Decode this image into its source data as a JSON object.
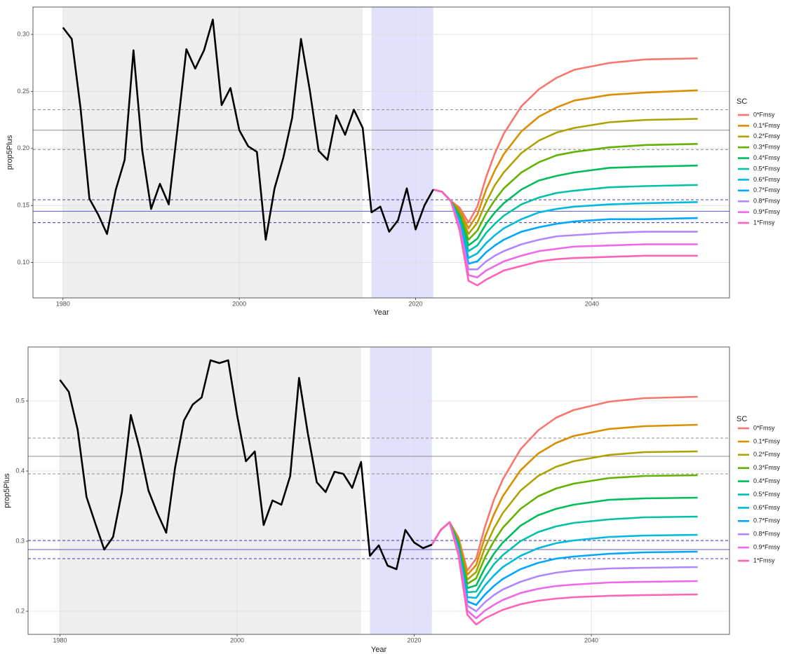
{
  "chart_data": [
    {
      "type": "line",
      "x_label": "Year",
      "y_label": "prop5Plus",
      "legend_title": "SC",
      "grid": true,
      "xlim": [
        1976.6,
        2055.6
      ],
      "xticks": [
        1980,
        2000,
        2020,
        2040
      ],
      "ylim": [
        0.069,
        0.324
      ],
      "yticks": [
        {
          "value": 0.1,
          "label": "0.10"
        },
        0.15,
        {
          "value": 0.2,
          "label": "0.20"
        },
        0.25,
        {
          "value": 0.3,
          "label": "0.30"
        }
      ],
      "shading": [
        {
          "from": 1980,
          "to": 2014,
          "color": "#eeeeee"
        },
        {
          "from": 2015,
          "to": 2022,
          "color": "#e1e1fb"
        }
      ],
      "reference_lines": [
        {
          "value": 0.234,
          "color": "#8c8c8c",
          "dashed": true
        },
        {
          "value": 0.216,
          "color": "#8c8c8c",
          "dashed": false
        },
        {
          "value": 0.199,
          "color": "#8c8c8c",
          "dashed": true
        },
        {
          "value": 0.155,
          "color": "#3b3bb0",
          "dashed": true
        },
        {
          "value": 0.145,
          "color": "#5b5bc0",
          "dashed": false
        },
        {
          "value": 0.135,
          "color": "#3b3bb0",
          "dashed": true
        }
      ],
      "history": {
        "color": "#000000",
        "x": [
          1980,
          1981,
          1982,
          1983,
          1984,
          1985,
          1986,
          1987,
          1988,
          1989,
          1990,
          1991,
          1992,
          1993,
          1994,
          1995,
          1996,
          1997,
          1998,
          1999,
          2000,
          2001,
          2002,
          2003,
          2004,
          2005,
          2006,
          2007,
          2008,
          2009,
          2010,
          2011,
          2012,
          2013,
          2014,
          2015,
          2016,
          2017,
          2018,
          2019,
          2020,
          2021,
          2022
        ],
        "values": [
          0.306,
          0.296,
          0.235,
          0.156,
          0.142,
          0.125,
          0.164,
          0.19,
          0.286,
          0.198,
          0.147,
          0.169,
          0.151,
          0.218,
          0.287,
          0.27,
          0.286,
          0.313,
          0.238,
          0.253,
          0.216,
          0.202,
          0.197,
          0.12,
          0.165,
          0.192,
          0.227,
          0.296,
          0.251,
          0.198,
          0.19,
          0.229,
          0.212,
          0.234,
          0.218,
          0.144,
          0.149,
          0.127,
          0.137,
          0.165,
          0.129,
          0.15,
          0.164
        ]
      },
      "x": [
        2022,
        2023,
        2024,
        2025,
        2026,
        2027,
        2028,
        2029,
        2030,
        2032,
        2034,
        2036,
        2038,
        2042,
        2046,
        2052
      ],
      "series": [
        {
          "name": "0*Fmsy",
          "color": "#F8766D",
          "values": [
            0.164,
            0.162,
            0.154,
            0.148,
            0.135,
            0.149,
            0.175,
            0.196,
            0.213,
            0.237,
            0.252,
            0.262,
            0.269,
            0.275,
            0.278,
            0.279
          ]
        },
        {
          "name": "0.1*Fmsy",
          "color": "#DB8E00",
          "values": [
            0.164,
            0.162,
            0.154,
            0.146,
            0.13,
            0.142,
            0.164,
            0.181,
            0.195,
            0.215,
            0.228,
            0.236,
            0.242,
            0.247,
            0.249,
            0.251
          ]
        },
        {
          "name": "0.2*Fmsy",
          "color": "#AEA200",
          "values": [
            0.164,
            0.162,
            0.154,
            0.144,
            0.125,
            0.135,
            0.153,
            0.168,
            0.179,
            0.196,
            0.207,
            0.214,
            0.218,
            0.223,
            0.225,
            0.226
          ]
        },
        {
          "name": "0.3*Fmsy",
          "color": "#64B200",
          "values": [
            0.164,
            0.162,
            0.154,
            0.142,
            0.12,
            0.128,
            0.143,
            0.155,
            0.165,
            0.179,
            0.188,
            0.194,
            0.197,
            0.201,
            0.203,
            0.204
          ]
        },
        {
          "name": "0.4*Fmsy",
          "color": "#00BD5C",
          "values": [
            0.164,
            0.162,
            0.154,
            0.14,
            0.115,
            0.121,
            0.134,
            0.144,
            0.152,
            0.164,
            0.172,
            0.176,
            0.179,
            0.183,
            0.184,
            0.185
          ]
        },
        {
          "name": "0.5*Fmsy",
          "color": "#00C1A7",
          "values": [
            0.164,
            0.162,
            0.154,
            0.138,
            0.11,
            0.115,
            0.126,
            0.134,
            0.141,
            0.151,
            0.157,
            0.161,
            0.163,
            0.166,
            0.167,
            0.168
          ]
        },
        {
          "name": "0.6*Fmsy",
          "color": "#00BADE",
          "values": [
            0.164,
            0.162,
            0.154,
            0.136,
            0.104,
            0.108,
            0.117,
            0.124,
            0.13,
            0.138,
            0.144,
            0.147,
            0.149,
            0.151,
            0.152,
            0.153
          ]
        },
        {
          "name": "0.7*Fmsy",
          "color": "#00A6FF",
          "values": [
            0.164,
            0.162,
            0.154,
            0.134,
            0.099,
            0.101,
            0.109,
            0.115,
            0.12,
            0.127,
            0.131,
            0.134,
            0.136,
            0.138,
            0.138,
            0.139
          ]
        },
        {
          "name": "0.8*Fmsy",
          "color": "#B385FF",
          "values": [
            0.164,
            0.162,
            0.154,
            0.132,
            0.094,
            0.094,
            0.101,
            0.106,
            0.11,
            0.116,
            0.12,
            0.123,
            0.124,
            0.126,
            0.127,
            0.127
          ]
        },
        {
          "name": "0.9*Fmsy",
          "color": "#EF67EB",
          "values": [
            0.164,
            0.162,
            0.154,
            0.13,
            0.089,
            0.087,
            0.093,
            0.097,
            0.101,
            0.106,
            0.11,
            0.112,
            0.114,
            0.115,
            0.116,
            0.116
          ]
        },
        {
          "name": "1*Fmsy",
          "color": "#FF63B6",
          "values": [
            0.164,
            0.162,
            0.154,
            0.128,
            0.084,
            0.08,
            0.085,
            0.089,
            0.093,
            0.097,
            0.101,
            0.103,
            0.104,
            0.105,
            0.106,
            0.106
          ]
        }
      ]
    },
    {
      "type": "line",
      "x_label": "Year",
      "y_label": "prop5Plus",
      "legend_title": "SC",
      "grid": true,
      "xlim": [
        1976.4,
        2055.6
      ],
      "xticks": [
        1980,
        2000,
        2020,
        2040
      ],
      "ylim": [
        0.167,
        0.577
      ],
      "yticks": [
        0.2,
        0.3,
        0.4,
        0.5
      ],
      "shading": [
        {
          "from": 1980,
          "to": 2014,
          "color": "#eeeeee"
        },
        {
          "from": 2015,
          "to": 2022,
          "color": "#e1e1fb"
        }
      ],
      "reference_lines": [
        {
          "value": 0.447,
          "color": "#8c8c8c",
          "dashed": true
        },
        {
          "value": 0.421,
          "color": "#8c8c8c",
          "dashed": false
        },
        {
          "value": 0.396,
          "color": "#8c8c8c",
          "dashed": true
        },
        {
          "value": 0.301,
          "color": "#3b3bb0",
          "dashed": true
        },
        {
          "value": 0.288,
          "color": "#5b5bc0",
          "dashed": false
        },
        {
          "value": 0.275,
          "color": "#3b3bb0",
          "dashed": true
        }
      ],
      "history": {
        "color": "#000000",
        "x": [
          1980,
          1981,
          1982,
          1983,
          1984,
          1985,
          1986,
          1987,
          1988,
          1989,
          1990,
          1991,
          1992,
          1993,
          1994,
          1995,
          1996,
          1997,
          1998,
          1999,
          2000,
          2001,
          2002,
          2003,
          2004,
          2005,
          2006,
          2007,
          2008,
          2009,
          2010,
          2011,
          2012,
          2013,
          2014,
          2015,
          2016,
          2017,
          2018,
          2019,
          2020,
          2021,
          2022
        ],
        "values": [
          0.53,
          0.513,
          0.459,
          0.363,
          0.325,
          0.288,
          0.306,
          0.37,
          0.48,
          0.432,
          0.372,
          0.34,
          0.312,
          0.405,
          0.472,
          0.495,
          0.505,
          0.558,
          0.554,
          0.558,
          0.48,
          0.414,
          0.428,
          0.323,
          0.358,
          0.352,
          0.393,
          0.533,
          0.453,
          0.384,
          0.37,
          0.399,
          0.396,
          0.376,
          0.413,
          0.279,
          0.294,
          0.265,
          0.26,
          0.316,
          0.298,
          0.29,
          0.295
        ]
      },
      "x": [
        2022,
        2023,
        2024,
        2025,
        2026,
        2027,
        2028,
        2029,
        2030,
        2032,
        2034,
        2036,
        2038,
        2042,
        2046,
        2052
      ],
      "series": [
        {
          "name": "0*Fmsy",
          "color": "#F8766D",
          "values": [
            0.295,
            0.316,
            0.327,
            0.305,
            0.258,
            0.275,
            0.321,
            0.359,
            0.388,
            0.431,
            0.458,
            0.476,
            0.487,
            0.499,
            0.504,
            0.506
          ]
        },
        {
          "name": "0.1*Fmsy",
          "color": "#DB8E00",
          "values": [
            0.295,
            0.316,
            0.327,
            0.303,
            0.252,
            0.266,
            0.306,
            0.338,
            0.364,
            0.401,
            0.425,
            0.44,
            0.45,
            0.46,
            0.464,
            0.466
          ]
        },
        {
          "name": "0.2*Fmsy",
          "color": "#AEA200",
          "values": [
            0.295,
            0.316,
            0.327,
            0.3,
            0.245,
            0.256,
            0.291,
            0.318,
            0.34,
            0.372,
            0.393,
            0.406,
            0.414,
            0.423,
            0.427,
            0.428
          ]
        },
        {
          "name": "0.3*Fmsy",
          "color": "#64B200",
          "values": [
            0.295,
            0.316,
            0.327,
            0.298,
            0.239,
            0.247,
            0.277,
            0.3,
            0.319,
            0.346,
            0.364,
            0.375,
            0.382,
            0.39,
            0.393,
            0.394
          ]
        },
        {
          "name": "0.4*Fmsy",
          "color": "#00BD5C",
          "values": [
            0.295,
            0.316,
            0.327,
            0.295,
            0.233,
            0.237,
            0.262,
            0.282,
            0.298,
            0.322,
            0.337,
            0.346,
            0.352,
            0.359,
            0.361,
            0.362
          ]
        },
        {
          "name": "0.5*Fmsy",
          "color": "#00C1A7",
          "values": [
            0.295,
            0.316,
            0.327,
            0.293,
            0.227,
            0.228,
            0.249,
            0.267,
            0.28,
            0.3,
            0.313,
            0.321,
            0.326,
            0.331,
            0.334,
            0.335
          ]
        },
        {
          "name": "0.6*Fmsy",
          "color": "#00BADE",
          "values": [
            0.295,
            0.316,
            0.327,
            0.29,
            0.22,
            0.219,
            0.237,
            0.251,
            0.263,
            0.279,
            0.29,
            0.297,
            0.301,
            0.306,
            0.308,
            0.309
          ]
        },
        {
          "name": "0.7*Fmsy",
          "color": "#00A6FF",
          "values": [
            0.295,
            0.316,
            0.327,
            0.288,
            0.214,
            0.209,
            0.224,
            0.236,
            0.246,
            0.26,
            0.269,
            0.275,
            0.278,
            0.282,
            0.284,
            0.285
          ]
        },
        {
          "name": "0.8*Fmsy",
          "color": "#B385FF",
          "values": [
            0.295,
            0.316,
            0.327,
            0.285,
            0.208,
            0.2,
            0.213,
            0.223,
            0.231,
            0.242,
            0.25,
            0.255,
            0.258,
            0.261,
            0.262,
            0.263
          ]
        },
        {
          "name": "0.9*Fmsy",
          "color": "#EF67EB",
          "values": [
            0.295,
            0.316,
            0.327,
            0.283,
            0.201,
            0.19,
            0.201,
            0.209,
            0.216,
            0.226,
            0.232,
            0.236,
            0.238,
            0.241,
            0.242,
            0.243
          ]
        },
        {
          "name": "1*Fmsy",
          "color": "#FF63B6",
          "values": [
            0.295,
            0.316,
            0.327,
            0.28,
            0.195,
            0.181,
            0.19,
            0.196,
            0.202,
            0.21,
            0.215,
            0.218,
            0.22,
            0.222,
            0.223,
            0.224
          ]
        }
      ]
    }
  ]
}
